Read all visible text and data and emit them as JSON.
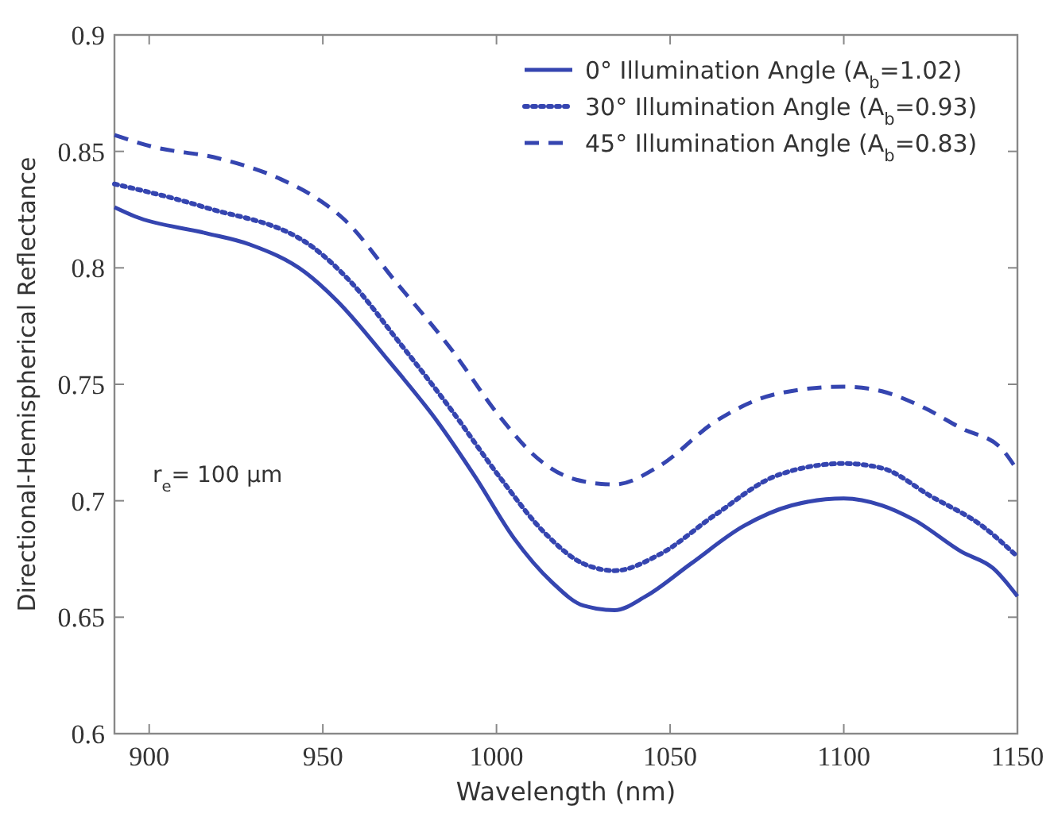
{
  "chart_data": {
    "type": "line",
    "xlabel": "Wavelength (nm)",
    "ylabel": "Directional-Hemispherical Reflectance",
    "xlim": [
      890,
      1150
    ],
    "xticks": [
      900,
      950,
      1000,
      1050,
      1100,
      1150
    ],
    "ylim": [
      0.6,
      0.9
    ],
    "yticks": [
      0.6,
      0.65,
      0.7,
      0.75,
      0.8,
      0.85,
      0.9
    ],
    "grid": false,
    "legend": "top right",
    "annotations": [
      "r$_{e}$= 100 µm"
    ],
    "x": [
      890,
      896,
      916,
      929,
      945,
      954,
      969,
      983,
      994,
      1005,
      1016,
      1025,
      1034,
      1043,
      1056,
      1071,
      1085,
      1100,
      1111,
      1120,
      1134,
      1143,
      1150
    ],
    "series": [
      {
        "name": "0° Illumination Angle (A$_{b}$=1.02)",
        "color": "#3545b0",
        "line_style": "solid",
        "values": [
          0.826,
          0.822,
          0.815,
          0.81,
          0.798,
          0.786,
          0.76,
          0.734,
          0.71,
          0.684,
          0.665,
          0.655,
          0.653,
          0.659,
          0.673,
          0.689,
          0.698,
          0.701,
          0.698,
          0.692,
          0.678,
          0.671,
          0.659
        ]
      },
      {
        "name": "30° Illumination Angle (A$_{b}$=0.93)",
        "color": "#3545b0",
        "line_style": "dotted",
        "x": [
          890,
          916,
          947,
          958,
          972,
          987,
          1001,
          1014,
          1025,
          1034,
          1047,
          1063,
          1081,
          1100,
          1111,
          1125,
          1140,
          1150
        ],
        "values": [
          0.836,
          0.826,
          0.809,
          0.794,
          0.768,
          0.739,
          0.71,
          0.686,
          0.673,
          0.67,
          0.677,
          0.694,
          0.711,
          0.716,
          0.714,
          0.702,
          0.689,
          0.676
        ]
      },
      {
        "name": "45° Illumination Angle (A$_{b}$=0.83)",
        "color": "#3545b0",
        "line_style": "dashed",
        "x": [
          890,
          901,
          920,
          938,
          947,
          956,
          971,
          987,
          1001,
          1012,
          1023,
          1034,
          1047,
          1063,
          1081,
          1100,
          1111,
          1123,
          1134,
          1145,
          1150
        ],
        "values": [
          0.857,
          0.852,
          0.847,
          0.838,
          0.831,
          0.821,
          0.794,
          0.765,
          0.736,
          0.718,
          0.709,
          0.707,
          0.715,
          0.734,
          0.746,
          0.749,
          0.747,
          0.74,
          0.731,
          0.723,
          0.713
        ]
      }
    ]
  }
}
